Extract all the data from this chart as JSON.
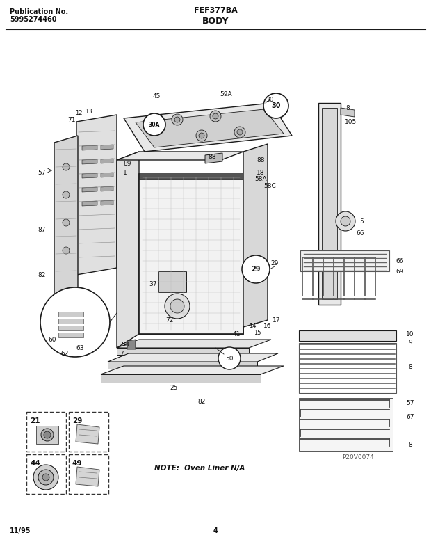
{
  "title_left_line1": "Publication No.",
  "title_left_line2": "5995274460",
  "title_center": "FEF377BA",
  "title_section": "BODY",
  "footer_left": "11/95",
  "footer_center": "4",
  "note_text": "NOTE:  Oven Liner N/A",
  "watermark": "P20V0074",
  "bg_color": "#ffffff",
  "line_color": "#1a1a1a",
  "text_color": "#111111",
  "gray_light": "#d8d8d8",
  "gray_mid": "#aaaaaa",
  "gray_dark": "#666666",
  "inset_labels": [
    "21",
    "29",
    "44",
    "49"
  ]
}
